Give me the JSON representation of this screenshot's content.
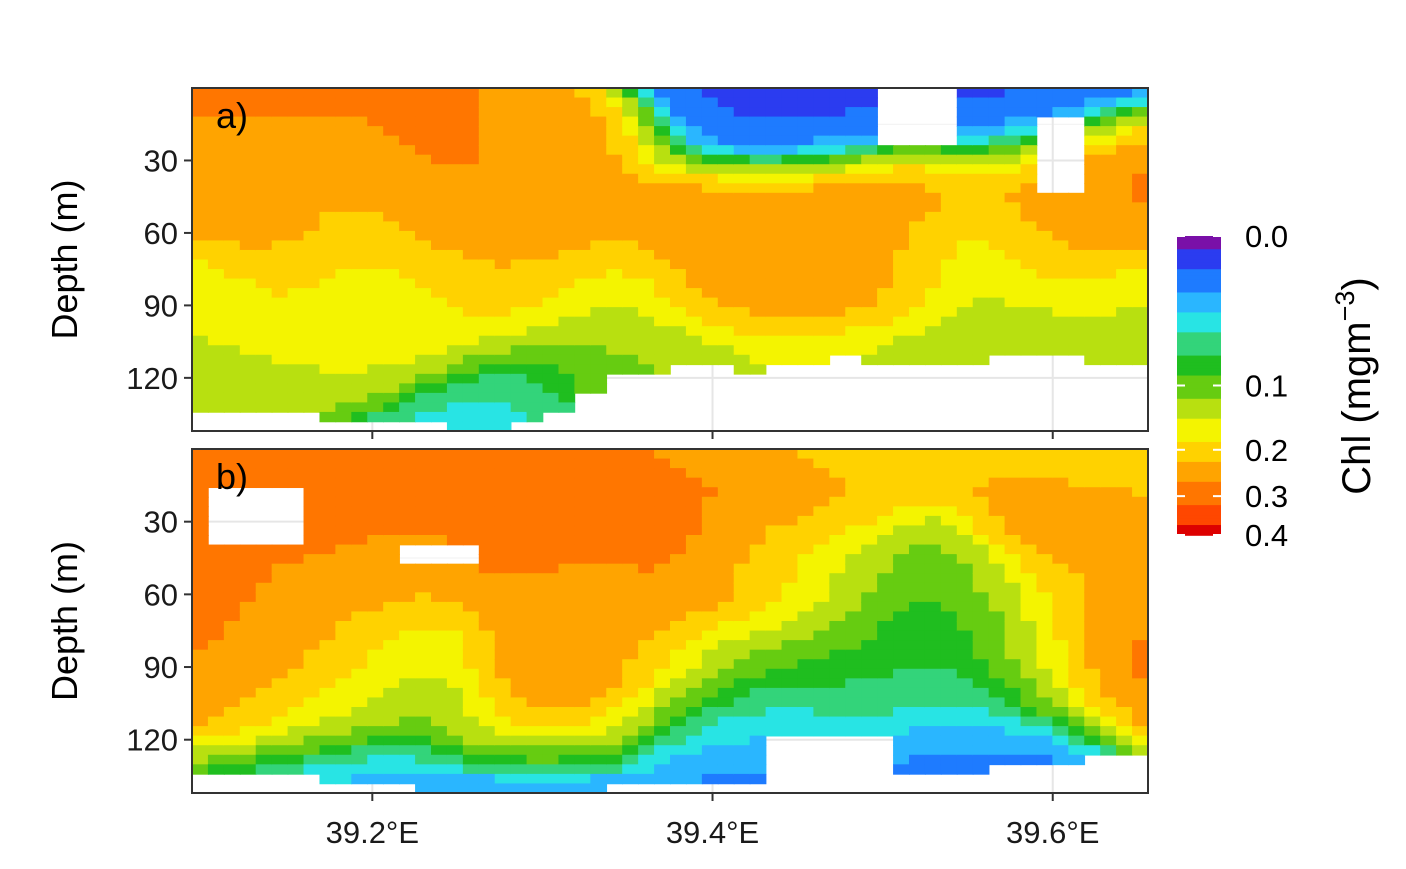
{
  "chart_data": {
    "type": "heatmap",
    "colorbar": {
      "label": "Chl (mgm",
      "label_superscript": "−3",
      "label_close": ")",
      "ticks": [
        {
          "label": "0.0",
          "value": 0.0
        },
        {
          "label": "0.1",
          "value": 0.1
        },
        {
          "label": "0.2",
          "value": 0.2
        },
        {
          "label": "0.3",
          "value": 0.3
        },
        {
          "label": "0.4",
          "value": 0.4
        }
      ],
      "range": [
        0,
        0.4
      ],
      "colors": [
        "#7a10a8",
        "#2b3cf0",
        "#1e7bff",
        "#2ab6ff",
        "#28e4e4",
        "#33d47a",
        "#1fbe1f",
        "#66cc11",
        "#b8e010",
        "#f4f400",
        "#ffd200",
        "#ffa400",
        "#ff7600",
        "#ff4700",
        "#dd0000"
      ]
    },
    "x_axis": {
      "ticks": [
        {
          "label": "39.2°E",
          "value": 39.2
        },
        {
          "label": "39.4°E",
          "value": 39.4
        },
        {
          "label": "39.6°E",
          "value": 39.6
        }
      ],
      "range": [
        39.094,
        39.656
      ]
    },
    "panels": [
      {
        "label": "a)",
        "ylabel": "Depth (m)",
        "yticks": [
          30,
          60,
          90,
          120
        ],
        "ylim": [
          0,
          142
        ],
        "xlim": [
          39.094,
          39.656
        ],
        "max_depth": [
          134,
          134,
          136,
          136,
          137,
          138,
          138,
          140,
          142,
          142,
          140,
          134,
          128,
          120,
          118,
          116,
          116,
          118,
          116,
          114,
          112,
          114,
          114,
          116,
          114,
          112,
          110,
          112,
          116,
          116
        ],
        "fields": [
          {
            "value": 0.22,
            "points": [
              [
                39.13,
                30,
                90
              ],
              [
                39.21,
                36,
                95
              ],
              [
                39.3,
                28,
                75
              ],
              [
                39.42,
                55,
                115
              ],
              [
                39.5,
                50,
                110
              ],
              [
                39.6,
                45,
                110
              ]
            ]
          },
          {
            "value": 0.3,
            "points": [
              [
                39.13,
                25,
                55
              ],
              [
                39.22,
                32,
                50
              ],
              [
                39.27,
                30,
                50
              ],
              [
                39.42,
                55,
                75
              ],
              [
                39.48,
                55,
                85
              ],
              [
                39.63,
                40,
                60
              ]
            ]
          },
          {
            "value": 0.12,
            "points": [
              [
                39.1,
                80,
                110
              ],
              [
                39.2,
                60,
                100
              ],
              [
                39.35,
                90,
                115
              ],
              [
                39.55,
                70,
                100
              ],
              [
                39.64,
                80,
                100
              ]
            ]
          },
          {
            "value": 0.06,
            "points": [
              [
                39.28,
                130,
                140
              ],
              [
                39.4,
                118,
                140
              ],
              [
                39.5,
                110,
                125
              ],
              [
                39.58,
                105,
                120
              ]
            ]
          },
          {
            "value": 0.02,
            "points": [
              [
                39.43,
                0,
                20
              ],
              [
                39.46,
                0,
                15
              ],
              [
                39.58,
                0,
                15
              ]
            ]
          }
        ],
        "blanks": [
          {
            "x": [
              39.37,
              39.41
            ],
            "y": [
              0,
              0
            ]
          },
          {
            "x": [
              39.5,
              39.54
            ],
            "y": [
              0,
              25
            ]
          },
          {
            "x": [
              39.59,
              39.62
            ],
            "y": [
              10,
              45
            ]
          }
        ]
      },
      {
        "label": "b)",
        "ylabel": "Depth (m)",
        "yticks": [
          30,
          60,
          90,
          120
        ],
        "ylim": [
          0,
          142
        ],
        "xlim": [
          39.094,
          39.656
        ],
        "max_depth": [
          136,
          136,
          136,
          136,
          138,
          138,
          140,
          142,
          142,
          142,
          142,
          142,
          142,
          140,
          140,
          138,
          138,
          138,
          140,
          140,
          138,
          136,
          136,
          134,
          134,
          130,
          130,
          130,
          128,
          126
        ],
        "fields": [
          {
            "value": 0.3,
            "points": [
              [
                39.18,
                40,
                100
              ],
              [
                39.3,
                45,
                110
              ],
              [
                39.36,
                45,
                90
              ],
              [
                39.42,
                20,
                60
              ],
              [
                39.62,
                40,
                90
              ]
            ]
          },
          {
            "value": 0.2,
            "points": [
              [
                39.2,
                55,
                85
              ],
              [
                39.33,
                60,
                80
              ],
              [
                39.45,
                10,
                40
              ],
              [
                39.63,
                30,
                50
              ]
            ]
          },
          {
            "value": 0.09,
            "points": [
              [
                39.45,
                50,
                110
              ],
              [
                39.52,
                55,
                100
              ],
              [
                39.57,
                60,
                90
              ]
            ]
          },
          {
            "value": 0.07,
            "points": [
              [
                39.22,
                85,
                95
              ],
              [
                39.4,
                85,
                100
              ],
              [
                39.55,
                80,
                100
              ]
            ]
          },
          {
            "value": 0.04,
            "points": [
              [
                39.2,
                110,
                120
              ],
              [
                39.4,
                108,
                120
              ],
              [
                39.55,
                105,
                118
              ]
            ]
          },
          {
            "value": 0.02,
            "points": [
              [
                39.3,
                125,
                140
              ],
              [
                39.45,
                122,
                140
              ],
              [
                39.55,
                120,
                140
              ]
            ]
          }
        ],
        "blanks": [
          {
            "x": [
              39.1,
              39.16
            ],
            "y": [
              15,
              40
            ]
          },
          {
            "x": [
              39.22,
              39.26
            ],
            "y": [
              38,
              48
            ]
          },
          {
            "x": [
              39.43,
              39.51
            ],
            "y": [
              120,
              142
            ]
          }
        ]
      }
    ]
  }
}
